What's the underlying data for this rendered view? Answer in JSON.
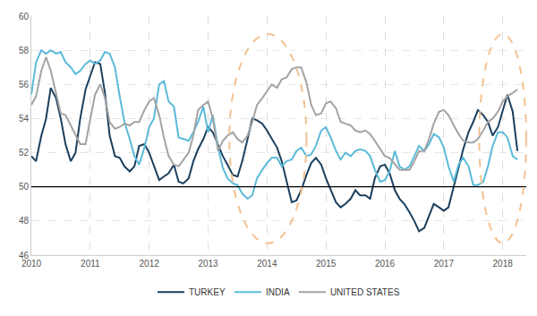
{
  "chart_data": {
    "type": "line",
    "x": [
      2010.0,
      2010.08,
      2010.17,
      2010.25,
      2010.33,
      2010.42,
      2010.5,
      2010.58,
      2010.67,
      2010.75,
      2010.83,
      2010.92,
      2011.0,
      2011.08,
      2011.17,
      2011.25,
      2011.33,
      2011.42,
      2011.5,
      2011.58,
      2011.67,
      2011.75,
      2011.83,
      2011.92,
      2012.0,
      2012.08,
      2012.17,
      2012.25,
      2012.33,
      2012.42,
      2012.5,
      2012.58,
      2012.67,
      2012.75,
      2012.83,
      2012.92,
      2013.0,
      2013.08,
      2013.17,
      2013.25,
      2013.33,
      2013.42,
      2013.5,
      2013.58,
      2013.67,
      2013.75,
      2013.83,
      2013.92,
      2014.0,
      2014.08,
      2014.17,
      2014.25,
      2014.33,
      2014.42,
      2014.5,
      2014.58,
      2014.67,
      2014.75,
      2014.83,
      2014.92,
      2015.0,
      2015.08,
      2015.17,
      2015.25,
      2015.33,
      2015.42,
      2015.5,
      2015.58,
      2015.67,
      2015.75,
      2015.83,
      2015.92,
      2016.0,
      2016.08,
      2016.17,
      2016.25,
      2016.33,
      2016.42,
      2016.5,
      2016.58,
      2016.67,
      2016.75,
      2016.83,
      2016.92,
      2017.0,
      2017.08,
      2017.17,
      2017.25,
      2017.33,
      2017.42,
      2017.5,
      2017.58,
      2017.67,
      2017.75,
      2017.83,
      2017.92,
      2018.0,
      2018.08,
      2018.17,
      2018.25
    ],
    "series": [
      {
        "name": "TURKEY",
        "color": "#1b3f5e",
        "values": [
          51.8,
          51.5,
          53,
          54,
          55.8,
          55.2,
          54,
          52.5,
          51.5,
          52,
          54,
          55.7,
          56.5,
          57.3,
          57.2,
          55.5,
          53,
          51.8,
          51.7,
          51.2,
          50.9,
          51.2,
          52.4,
          52.5,
          52,
          51.2,
          50.4,
          50.6,
          50.8,
          51.3,
          50.3,
          50.2,
          50.5,
          51.5,
          52.2,
          52.8,
          53.5,
          53.2,
          52.5,
          51.8,
          51.3,
          50.7,
          50.6,
          51.5,
          52.8,
          54,
          53.9,
          53.7,
          53.3,
          52.8,
          52.3,
          51.5,
          50.3,
          49.1,
          49.2,
          49.8,
          50.7,
          51.4,
          51.7,
          51.3,
          50.5,
          49.8,
          49.1,
          48.8,
          49,
          49.3,
          49.8,
          49.5,
          49.5,
          49.3,
          50.5,
          51.2,
          51.3,
          50.8,
          49.8,
          49.3,
          49,
          48.5,
          48,
          47.4,
          47.6,
          48.3,
          49,
          48.8,
          48.6,
          48.8,
          50,
          51.2,
          52.2,
          53.2,
          53.8,
          54.5,
          54.2,
          53.8,
          53,
          53.5,
          54.5,
          55.4,
          54.4,
          52.1
        ]
      },
      {
        "name": "INDIA",
        "color": "#5bbad9",
        "values": [
          55.4,
          57.3,
          58,
          57.8,
          58,
          57.8,
          57.9,
          57.3,
          57,
          56.6,
          56.8,
          57.2,
          57.4,
          57.2,
          57.4,
          57.9,
          57.8,
          57,
          55.3,
          53.8,
          52.8,
          51.8,
          51.3,
          52.3,
          53.5,
          54,
          56,
          56.2,
          55,
          54.7,
          52.9,
          52.8,
          52.7,
          53.2,
          53.8,
          54.7,
          53.2,
          54.2,
          52.3,
          51.1,
          50.5,
          50.2,
          50.1,
          49.6,
          49.3,
          49.5,
          50.5,
          51,
          51.4,
          51.7,
          51.7,
          51.2,
          51.5,
          51.6,
          52.1,
          52.3,
          51.8,
          51.9,
          52.4,
          53.3,
          53.5,
          52.9,
          52.1,
          51.6,
          52,
          51.8,
          52.1,
          52.2,
          52.1,
          51.8,
          51,
          50.3,
          50.4,
          50.9,
          52.1,
          51.2,
          51,
          51.2,
          51.8,
          52.4,
          52.1,
          52.5,
          53.1,
          52.9,
          52.3,
          51.2,
          50.3,
          51.3,
          51.7,
          51.2,
          50.1,
          50.1,
          50.3,
          51.2,
          52.4,
          53.2,
          53.2,
          52.9,
          51.8,
          51.6
        ]
      },
      {
        "name": "UNITED STATES",
        "color": "#a3a3a3",
        "values": [
          54.8,
          55.3,
          56.8,
          57.6,
          56.8,
          55.5,
          54.3,
          54.2,
          53.6,
          53,
          52.5,
          52.5,
          54,
          55.4,
          56,
          55.2,
          53.8,
          53.4,
          53.5,
          53.7,
          53.6,
          53.8,
          53.8,
          54.5,
          55,
          55.2,
          54.2,
          52.9,
          51.8,
          51.3,
          51.2,
          51.6,
          52,
          53,
          54.5,
          54.8,
          55,
          54,
          52.1,
          52.7,
          53,
          53.2,
          52.8,
          52.6,
          53,
          53.8,
          54.8,
          55.2,
          55.6,
          56,
          55.8,
          56.3,
          56.4,
          56.9,
          57,
          57,
          56.1,
          54.8,
          54.2,
          54.3,
          54.9,
          55,
          54.6,
          53.8,
          53.7,
          53.6,
          53.3,
          53.2,
          53.3,
          53.1,
          52.7,
          52.2,
          51.8,
          51.7,
          51.3,
          51,
          51,
          51,
          51.5,
          52.1,
          52.1,
          52.8,
          53.7,
          54.4,
          54.5,
          54.2,
          53.6,
          53.1,
          52.7,
          52.6,
          52.6,
          52.8,
          53.3,
          53.8,
          54,
          54.4,
          55,
          55.3,
          55.5,
          55.7
        ]
      }
    ],
    "reference_line": 50,
    "xlim": [
      2010,
      2018.4
    ],
    "xticks": [
      2010,
      2011,
      2012,
      2013,
      2014,
      2015,
      2016,
      2017,
      2018
    ],
    "ylim": [
      46,
      60
    ],
    "yticks": [
      46,
      48,
      50,
      52,
      54,
      56,
      58,
      60
    ],
    "grid": true,
    "legend": "bottom"
  }
}
